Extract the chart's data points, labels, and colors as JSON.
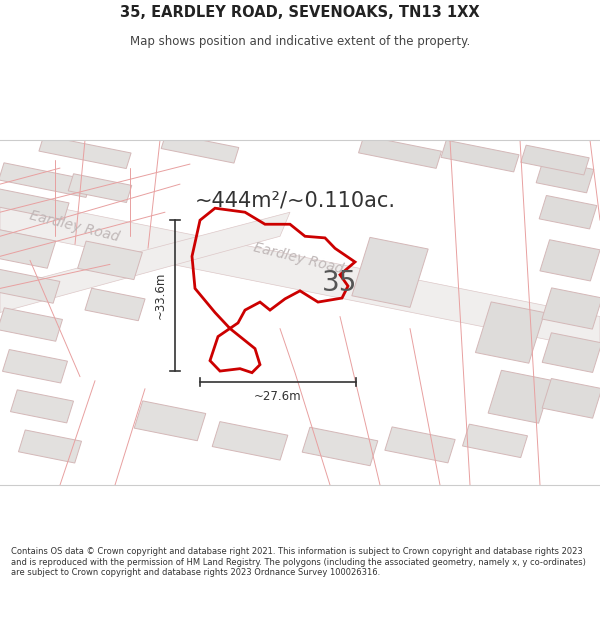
{
  "title": "35, EARDLEY ROAD, SEVENOAKS, TN13 1XX",
  "subtitle": "Map shows position and indicative extent of the property.",
  "area_text": "~444m²/~0.110ac.",
  "road_label_upper": "Eardley Road",
  "road_label_lower": "Eardley Road",
  "property_number": "35",
  "dim_vertical": "~33.6m",
  "dim_horizontal": "~27.6m",
  "footer": "Contains OS data © Crown copyright and database right 2021. This information is subject to Crown copyright and database rights 2023 and is reproduced with the permission of HM Land Registry. The polygons (including the associated geometry, namely x, y co-ordinates) are subject to Crown copyright and database rights 2023 Ordnance Survey 100026316.",
  "bg_color": "#f7f6f4",
  "building_fill": "#e2e0de",
  "building_edge": "#d4b8b8",
  "road_fill": "#f0eeed",
  "road_edge": "#ddc8c8",
  "plot_edge": "#cc0000",
  "road_text_color": "#c0b8b8",
  "text_dark": "#222222",
  "text_mid": "#444444",
  "dim_color": "#333333"
}
